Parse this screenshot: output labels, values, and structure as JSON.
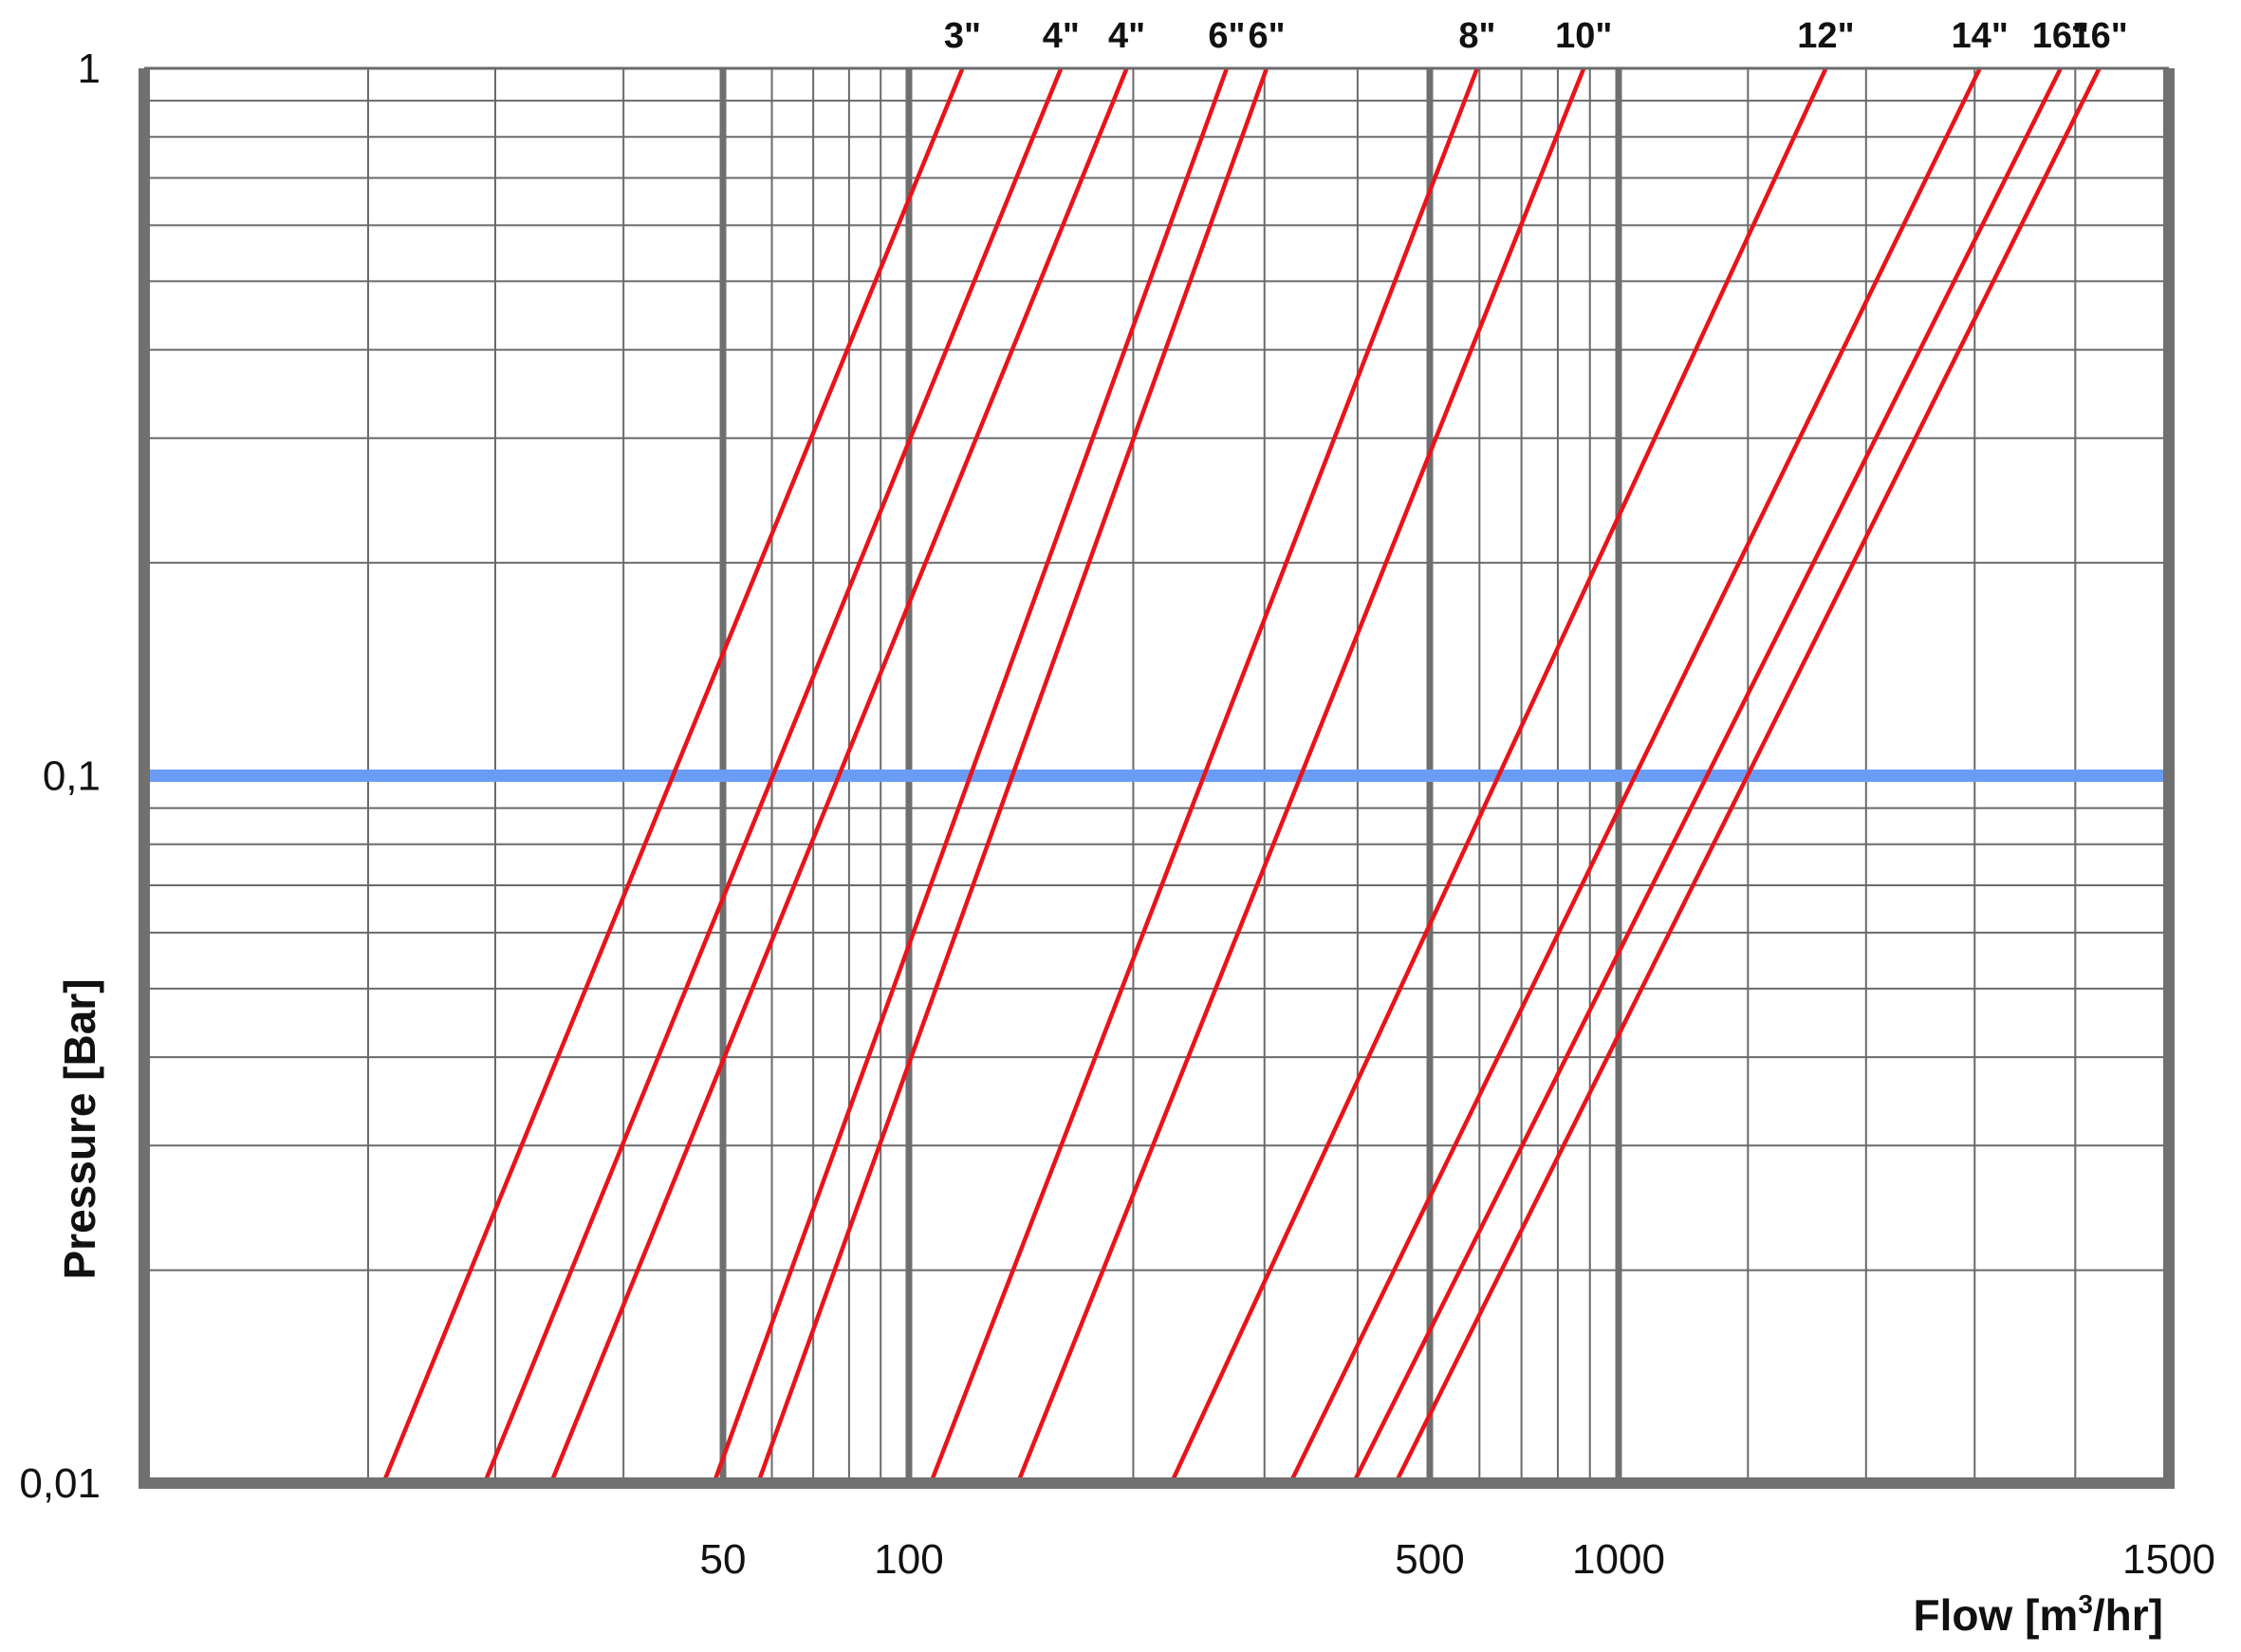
{
  "chart_data": {
    "type": "line",
    "xlabel": "Flow [m",
    "xlabel_sup": "3",
    "xlabel_end": "/hr]",
    "ylabel": "Pressure [Bar]",
    "ylim": [
      0.01,
      1
    ],
    "y_scale": "log",
    "y_ticks": [
      {
        "value": 1,
        "label": "1"
      },
      {
        "value": 0.1,
        "label": "0,1"
      },
      {
        "value": 0.01,
        "label": "0,01"
      }
    ],
    "x_ticks": [
      {
        "value": 50,
        "label": "50"
      },
      {
        "value": 100,
        "label": "100"
      },
      {
        "value": 500,
        "label": "500"
      },
      {
        "value": 1000,
        "label": "1000"
      },
      {
        "value": 1500,
        "label": "1500"
      }
    ],
    "reference_line": {
      "y": 0.1,
      "color": "#6b9cf5"
    },
    "series_color": "#e8141a",
    "series": [
      {
        "name": "3\"",
        "points": [
          [
            21,
            0.01
          ],
          [
            118,
            1
          ]
        ]
      },
      {
        "name": "4\"",
        "points": [
          [
            29,
            0.01
          ],
          [
            160,
            1
          ]
        ]
      },
      {
        "name": "4\"",
        "points": [
          [
            34,
            0.01
          ],
          [
            196,
            1
          ]
        ]
      },
      {
        "name": "6\"",
        "points": [
          [
            49,
            0.01
          ],
          [
            267,
            1
          ]
        ]
      },
      {
        "name": "6\"",
        "points": [
          [
            57,
            0.01
          ],
          [
            302,
            1
          ]
        ]
      },
      {
        "name": "8\"",
        "points": [
          [
            107,
            0.01
          ],
          [
            595,
            1
          ]
        ]
      },
      {
        "name": "10\"",
        "points": [
          [
            140,
            0.01
          ],
          [
            880,
            1
          ]
        ]
      },
      {
        "name": "12\"",
        "points": [
          [
            225,
            0.01
          ],
          [
            1165,
            1
          ]
        ]
      },
      {
        "name": "14\"",
        "points": [
          [
            325,
            0.01
          ],
          [
            1305,
            1
          ]
        ]
      },
      {
        "name": "16\"",
        "points": [
          [
            395,
            0.01
          ],
          [
            1385,
            1
          ]
        ]
      },
      {
        "name": "16\"",
        "points": [
          [
            450,
            0.01
          ],
          [
            1425,
            1
          ]
        ]
      }
    ],
    "grid": true
  }
}
